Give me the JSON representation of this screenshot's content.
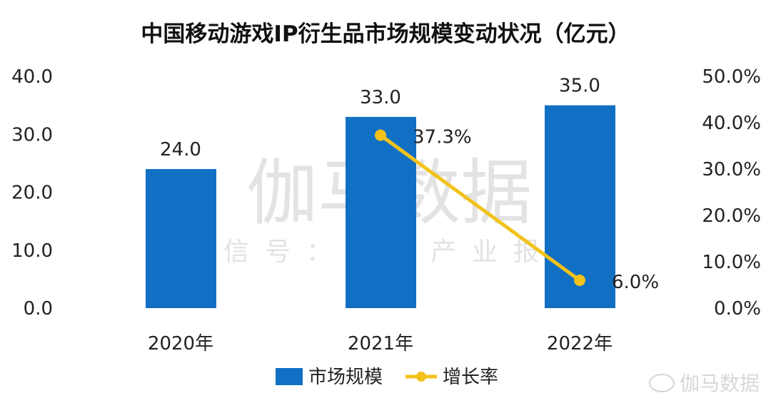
{
  "chart_data": {
    "type": "bar",
    "title": "中国移动游戏IP衍生品市场规模变动状况（亿元）",
    "categories": [
      "2020年",
      "2021年",
      "2022年"
    ],
    "series": [
      {
        "name": "市场规模",
        "type": "bar",
        "axis": "left",
        "values": [
          24.0,
          33.0,
          35.0
        ],
        "labels": [
          "24.0",
          "33.0",
          "35.0"
        ],
        "color": "#1270C4"
      },
      {
        "name": "增长率",
        "type": "line",
        "axis": "right",
        "values": [
          null,
          37.3,
          6.0
        ],
        "labels": [
          "",
          "37.3%",
          "6.0%"
        ],
        "color": "#F2C21B"
      }
    ],
    "left_axis": {
      "ylim": [
        0,
        40
      ],
      "ticks": [
        "0.0",
        "10.0",
        "20.0",
        "30.0",
        "40.0"
      ]
    },
    "right_axis": {
      "ylim": [
        0,
        50
      ],
      "ticks": [
        "0.0%",
        "10.0%",
        "20.0%",
        "30.0%",
        "40.0%",
        "50.0%"
      ]
    },
    "grid": false,
    "legend": "bottom-center",
    "watermark": {
      "main": "伽马数据",
      "sub": "微信号：游戏产业报告",
      "corner": "伽马数据"
    }
  }
}
